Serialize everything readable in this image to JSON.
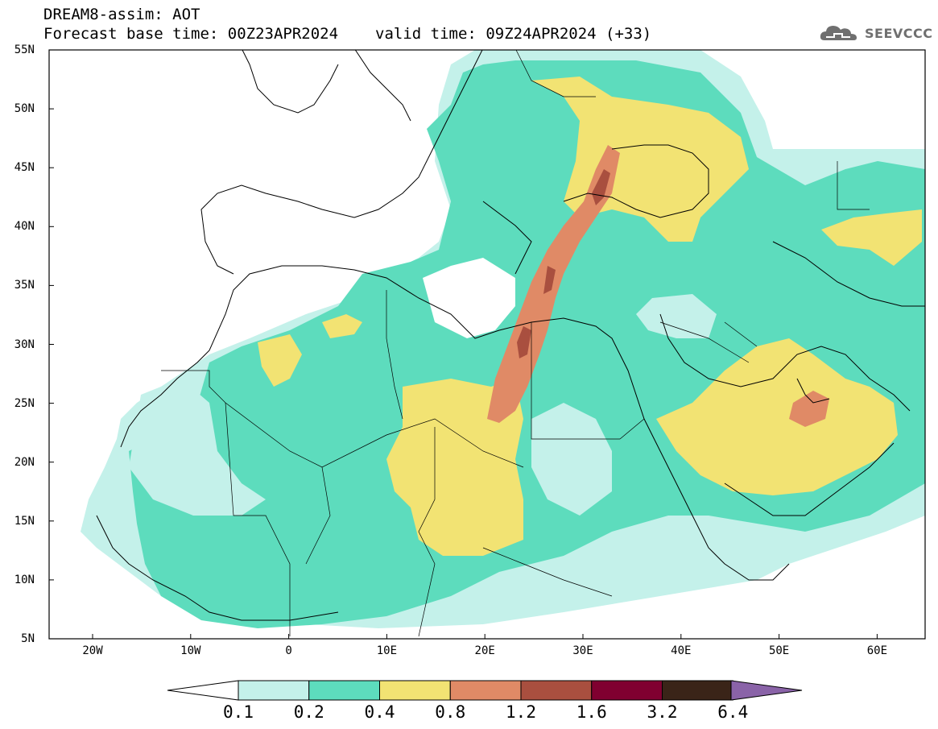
{
  "header": {
    "title": "DREAM8-assim: AOT",
    "base_time": "Forecast base time: 00Z23APR2024",
    "valid_time": "valid time: 09Z24APR2024 (+33)"
  },
  "logo": {
    "text": "SEEVCCC",
    "icon": "cloud-icon"
  },
  "map": {
    "lat_labels": [
      "55N",
      "50N",
      "45N",
      "40N",
      "35N",
      "30N",
      "25N",
      "20N",
      "15N",
      "10N",
      "5N"
    ],
    "lon_labels": [
      "20W",
      "10W",
      "0",
      "10E",
      "20E",
      "30E",
      "40E",
      "50E",
      "60E"
    ]
  },
  "colorbar": {
    "labels": [
      "0.1",
      "0.2",
      "0.4",
      "0.8",
      "1.2",
      "1.6",
      "3.2",
      "6.4"
    ],
    "colors": [
      "#c4f1ea",
      "#5ddcbd",
      "#f2e373",
      "#e08a66",
      "#a94f3f",
      "#800030",
      "#3a2418",
      "#8a63a8"
    ]
  },
  "palette": {
    "c02": "#c4f1ea",
    "c04": "#5ddcbd",
    "c08": "#f2e373",
    "c12": "#e08a66",
    "c16": "#a94f3f",
    "c32": "#800030"
  }
}
